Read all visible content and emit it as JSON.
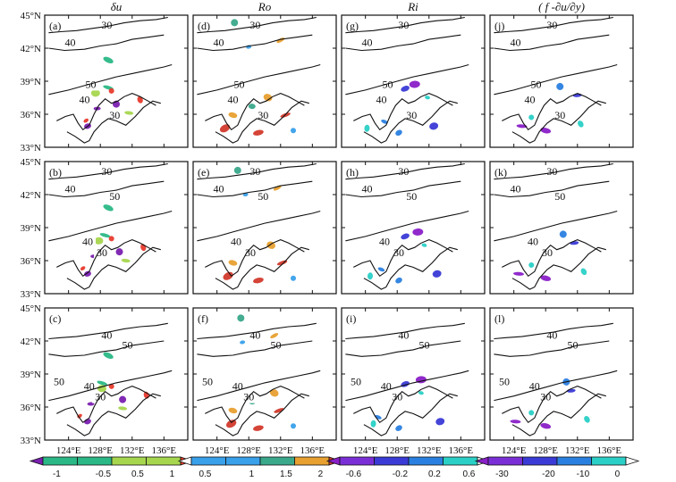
{
  "chart_data": {
    "type": "map-grid",
    "column_titles": [
      "δu",
      "Ro",
      "Ri",
      "( f -∂u/∂y)"
    ],
    "panel_labels": [
      [
        "(a)",
        "(d)",
        "(g)",
        "(j)"
      ],
      [
        "(b)",
        "(e)",
        "(h)",
        "(k)"
      ],
      [
        "(c)",
        "(f)",
        "(i)",
        "(l)"
      ]
    ],
    "x_ticks": [
      "124°E",
      "128°E",
      "132°E",
      "136°E"
    ],
    "x_tick_values": [
      124,
      128,
      132,
      136
    ],
    "xlim": [
      121,
      139
    ],
    "y_ticks": [
      "45°N",
      "42°N",
      "39°N",
      "36°N",
      "33°N"
    ],
    "y_tick_values": [
      45,
      42,
      39,
      36,
      33
    ],
    "ylim": [
      33,
      45
    ],
    "contour_labels": [
      [
        "30",
        "40",
        "50",
        "40",
        "30"
      ],
      [
        "30",
        "40",
        "50",
        "40",
        "30"
      ],
      [
        "40",
        "50",
        "50",
        "40",
        "30"
      ]
    ],
    "contour_label_pos": [
      [
        [
          128.8,
          43.8
        ],
        [
          124.2,
          42.2
        ],
        [
          126.8,
          38.4
        ],
        [
          126.0,
          37.0
        ],
        [
          129.8,
          35.6
        ]
      ],
      [
        [
          128.8,
          43.8
        ],
        [
          124.2,
          42.2
        ],
        [
          129.8,
          41.5
        ],
        [
          126.4,
          37.4
        ],
        [
          128.2,
          36.4
        ]
      ],
      [
        [
          128.8,
          42.2
        ],
        [
          131.4,
          41.3
        ],
        [
          122.8,
          38.0
        ],
        [
          126.6,
          37.6
        ],
        [
          128.0,
          36.6
        ]
      ]
    ],
    "colorbars": [
      {
        "ticks": [
          "-1",
          "-0.5",
          "0.5",
          "1"
        ],
        "colors": [
          "#7a1fb0",
          "#2ab886",
          "#2ab886",
          "#a6d64e",
          "#a6d64e",
          "#e83a2c"
        ]
      },
      {
        "ticks": [
          "0.5",
          "1",
          "1.5",
          "2"
        ],
        "colors": [
          "#ffffff",
          "#39a0ea",
          "#39a0ea",
          "#3aa88a",
          "#e8a030",
          "#d23a2c"
        ]
      },
      {
        "ticks": [
          "-0.6",
          "-0.2",
          "0.2",
          "0.6"
        ],
        "colors": [
          "#8a1fc8",
          "#7a2fd6",
          "#3a3ad6",
          "#2a80e0",
          "#2ad0c6",
          "#ffffff"
        ]
      },
      {
        "ticks": [
          "-30",
          "-20",
          "-10",
          "0"
        ],
        "colors": [
          "#8a1fc8",
          "#7a2fd6",
          "#3a3ad6",
          "#2a80e0",
          "#2ad0c6",
          "#ffffff"
        ]
      }
    ],
    "shading_colors": [
      [
        "#e83a2c",
        "#7a1fb0",
        "#a6d64e",
        "#2ab886"
      ],
      [
        "#39a0ea",
        "#3aa88a",
        "#e8a030",
        "#d23a2c"
      ],
      [
        "#2ad0c6",
        "#2a80e0",
        "#3a3ad6",
        "#8a1fc8"
      ],
      [
        "#2ad0c6",
        "#2a80e0",
        "#3a3ad6",
        "#8a1fc8"
      ]
    ],
    "shading_patches": [
      {
        "lon": 125.8,
        "lat": 35.3,
        "col": 0
      },
      {
        "lon": 126.4,
        "lat": 34.8,
        "col": 0
      },
      {
        "lon": 127.8,
        "lat": 37.8,
        "col": 0
      },
      {
        "lon": 128.6,
        "lat": 38.3,
        "col": 0
      },
      {
        "lon": 129.4,
        "lat": 38.0,
        "col": 0
      },
      {
        "lon": 130.4,
        "lat": 36.8,
        "col": 0
      },
      {
        "lon": 131.2,
        "lat": 36.0,
        "col": 0
      },
      {
        "lon": 129.0,
        "lat": 40.8,
        "col": 0
      },
      {
        "lon": 133.4,
        "lat": 37.2,
        "col": 0
      },
      {
        "lon": 127.2,
        "lat": 36.4,
        "col": 0
      },
      {
        "lon": 126.0,
        "lat": 35.8,
        "col": 1
      },
      {
        "lon": 125.4,
        "lat": 34.6,
        "col": 1
      },
      {
        "lon": 127.6,
        "lat": 42.0,
        "col": 1
      },
      {
        "lon": 128.4,
        "lat": 36.6,
        "col": 1
      },
      {
        "lon": 130.8,
        "lat": 37.4,
        "col": 1
      },
      {
        "lon": 132.2,
        "lat": 35.8,
        "col": 1
      },
      {
        "lon": 133.6,
        "lat": 34.4,
        "col": 1
      },
      {
        "lon": 126.6,
        "lat": 44.2,
        "col": 1
      },
      {
        "lon": 131.6,
        "lat": 42.6,
        "col": 1
      },
      {
        "lon": 129.2,
        "lat": 34.2,
        "col": 1
      },
      {
        "lon": 124.6,
        "lat": 34.6,
        "col": 2
      },
      {
        "lon": 126.0,
        "lat": 35.2,
        "col": 2
      },
      {
        "lon": 129.0,
        "lat": 38.2,
        "col": 2
      },
      {
        "lon": 130.6,
        "lat": 38.6,
        "col": 2
      },
      {
        "lon": 131.4,
        "lat": 37.4,
        "col": 2
      },
      {
        "lon": 128.2,
        "lat": 34.2,
        "col": 2
      },
      {
        "lon": 133.0,
        "lat": 34.8,
        "col": 2
      },
      {
        "lon": 124.6,
        "lat": 34.8,
        "col": 3
      },
      {
        "lon": 126.2,
        "lat": 35.6,
        "col": 3
      },
      {
        "lon": 130.2,
        "lat": 38.4,
        "col": 3
      },
      {
        "lon": 131.6,
        "lat": 37.6,
        "col": 3
      },
      {
        "lon": 128.0,
        "lat": 34.4,
        "col": 3
      },
      {
        "lon": 132.8,
        "lat": 35.0,
        "col": 3
      }
    ]
  }
}
